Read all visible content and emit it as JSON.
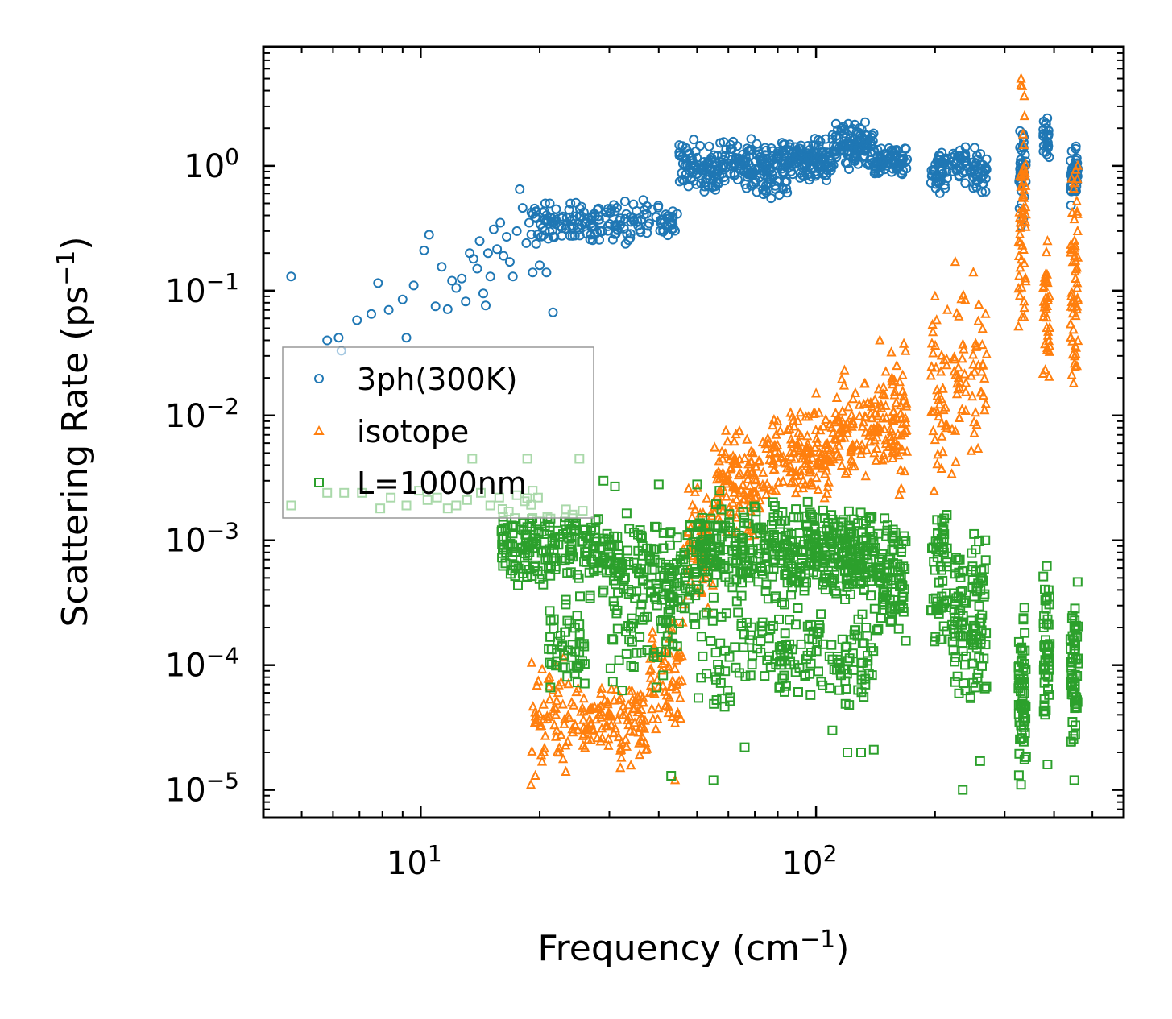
{
  "chart_data": {
    "type": "scatter",
    "xscale": "log",
    "yscale": "log",
    "xlim": [
      4.0,
      600
    ],
    "ylim": [
      6e-06,
      9.0
    ],
    "xlabel": {
      "base": "Frequency (cm",
      "sup": "−1",
      "tail": ")"
    },
    "ylabel": {
      "base": "Scattering Rate (ps",
      "sup": "−1",
      "tail": ")"
    },
    "x_ticks": [
      {
        "value": 10,
        "base": "10",
        "exp": "1"
      },
      {
        "value": 100,
        "base": "10",
        "exp": "2"
      }
    ],
    "y_ticks": [
      {
        "value": 1,
        "base": "10",
        "exp": "0"
      },
      {
        "value": 0.1,
        "base": "10",
        "exp": "−1"
      },
      {
        "value": 0.01,
        "base": "10",
        "exp": "−2"
      },
      {
        "value": 0.001,
        "base": "10",
        "exp": "−3"
      },
      {
        "value": 0.0001,
        "base": "10",
        "exp": "−4"
      },
      {
        "value": 1e-05,
        "base": "10",
        "exp": "−5"
      }
    ],
    "legend": {
      "position": "center-left",
      "alpha": 0.6
    },
    "series": [
      {
        "name": "3ph(300K)",
        "marker": "circle",
        "color": "#1f77b4",
        "points": [
          [
            4.7,
            0.13
          ],
          [
            5.8,
            0.04
          ],
          [
            6.2,
            0.042
          ],
          [
            6.3,
            0.033
          ],
          [
            6.9,
            0.058
          ],
          [
            7.5,
            0.065
          ],
          [
            7.8,
            0.115
          ],
          [
            8.3,
            0.07
          ],
          [
            9.0,
            0.085
          ],
          [
            9.2,
            0.042
          ],
          [
            9.6,
            0.11
          ],
          [
            10.2,
            0.21
          ],
          [
            10.5,
            0.28
          ],
          [
            10.9,
            0.075
          ],
          [
            11.3,
            0.155
          ],
          [
            11.7,
            0.071
          ],
          [
            12.0,
            0.12
          ],
          [
            12.3,
            0.105
          ],
          [
            12.7,
            0.125
          ],
          [
            13.0,
            0.082
          ],
          [
            13.3,
            0.2
          ],
          [
            13.6,
            0.18
          ],
          [
            13.9,
            0.15
          ],
          [
            14.1,
            0.25
          ],
          [
            14.4,
            0.095
          ],
          [
            14.6,
            0.076
          ],
          [
            14.8,
            0.2
          ],
          [
            15.0,
            0.13
          ],
          [
            15.3,
            0.31
          ],
          [
            15.6,
            0.215
          ],
          [
            15.9,
            0.35
          ],
          [
            16.2,
            0.19
          ],
          [
            16.5,
            0.27
          ],
          [
            16.8,
            0.17
          ],
          [
            17.1,
            0.13
          ],
          [
            17.5,
            0.3
          ],
          [
            17.8,
            0.65
          ],
          [
            18.1,
            0.46
          ],
          [
            18.5,
            0.24
          ],
          [
            18.8,
            0.35
          ],
          [
            19.2,
            0.14
          ],
          [
            19.6,
            0.38
          ],
          [
            20.0,
            0.16
          ],
          [
            20.4,
            0.42
          ],
          [
            20.8,
            0.14
          ],
          [
            21.2,
            0.5
          ],
          [
            21.6,
            0.067
          ],
          [
            22.0,
            0.45
          ]
        ],
        "bands": [
          [
            19,
            45,
            0.23,
            0.55,
            170
          ],
          [
            45,
            70,
            0.55,
            1.8,
            160
          ],
          [
            70,
            85,
            0.5,
            1.6,
            90
          ],
          [
            85,
            110,
            0.75,
            1.7,
            110
          ],
          [
            110,
            140,
            0.9,
            2.3,
            110
          ],
          [
            140,
            170,
            0.8,
            1.5,
            70
          ],
          [
            195,
            215,
            0.55,
            1.5,
            40
          ],
          [
            220,
            240,
            0.7,
            1.6,
            30
          ],
          [
            245,
            270,
            0.55,
            1.5,
            40
          ],
          [
            325,
            340,
            0.3,
            2.8,
            40
          ],
          [
            375,
            390,
            1.0,
            2.8,
            25
          ],
          [
            440,
            460,
            0.4,
            1.7,
            40
          ]
        ]
      },
      {
        "name": "isotope",
        "marker": "triangle",
        "color": "#ff7f0e",
        "points": [
          [
            19.0,
            1.1e-05
          ],
          [
            19.5,
            1.3e-05
          ],
          [
            20.5,
            2e-05
          ],
          [
            23.0,
            0.000115
          ],
          [
            25.0,
            6.5e-05
          ],
          [
            27.0,
            2.5e-05
          ],
          [
            32.0,
            1.5e-05
          ],
          [
            33.0,
            4e-05
          ],
          [
            38.0,
            9e-05
          ],
          [
            41.0,
            0.00013
          ],
          [
            44.0,
            1.2e-05
          ],
          [
            46.0,
            0.00022
          ],
          [
            50.0,
            0.0007
          ],
          [
            55.0,
            0.002
          ],
          [
            58.0,
            0.0045
          ],
          [
            60.0,
            0.003
          ],
          [
            64.0,
            0.0075
          ],
          [
            90.0,
            0.009
          ],
          [
            100.0,
            0.015
          ],
          [
            118.0,
            0.023
          ],
          [
            133.0,
            0.018
          ],
          [
            145.0,
            0.04
          ],
          [
            155.0,
            0.032
          ],
          [
            160.0,
            0.025
          ],
          [
            200.0,
            0.09
          ],
          [
            215.0,
            0.07
          ],
          [
            225.0,
            0.17
          ],
          [
            250.0,
            0.14
          ],
          [
            330.0,
            5.0
          ],
          [
            385.0,
            0.25
          ],
          [
            450.0,
            0.22
          ]
        ],
        "bands": [
          [
            19,
            24,
            1.2e-05,
            0.00012,
            55
          ],
          [
            24,
            30,
            1.8e-05,
            7e-05,
            55
          ],
          [
            30,
            38,
            1.5e-05,
            8e-05,
            60
          ],
          [
            38,
            46,
            2.5e-05,
            0.00025,
            60
          ],
          [
            46,
            55,
            0.00025,
            0.003,
            60
          ],
          [
            55,
            75,
            0.001,
            0.008,
            120
          ],
          [
            75,
            110,
            0.002,
            0.012,
            140
          ],
          [
            110,
            150,
            0.003,
            0.02,
            110
          ],
          [
            150,
            170,
            0.002,
            0.04,
            60
          ],
          [
            195,
            215,
            0.002,
            0.09,
            40
          ],
          [
            220,
            240,
            0.003,
            0.17,
            30
          ],
          [
            245,
            270,
            0.004,
            0.14,
            30
          ],
          [
            325,
            340,
            0.03,
            5.0,
            55
          ],
          [
            375,
            390,
            0.015,
            0.3,
            35
          ],
          [
            440,
            460,
            0.01,
            1.3,
            55
          ]
        ]
      },
      {
        "name": "L=1000nm",
        "marker": "square",
        "color": "#2ca02c",
        "points": [
          [
            4.7,
            0.0019
          ],
          [
            5.8,
            0.0024
          ],
          [
            6.4,
            0.0024
          ],
          [
            7.1,
            0.0024
          ],
          [
            7.9,
            0.0018
          ],
          [
            8.4,
            0.0022
          ],
          [
            9.2,
            0.0019
          ],
          [
            9.9,
            0.0025
          ],
          [
            10.4,
            0.0021
          ],
          [
            11.0,
            0.0022
          ],
          [
            11.7,
            0.0018
          ],
          [
            12.3,
            0.0019
          ],
          [
            13.1,
            0.0021
          ],
          [
            13.5,
            0.0045
          ],
          [
            14.2,
            0.0024
          ],
          [
            15.0,
            0.0019
          ],
          [
            15.8,
            0.0022
          ],
          [
            16.7,
            0.0017
          ],
          [
            17.5,
            0.0023
          ],
          [
            18.6,
            0.0045
          ],
          [
            19.2,
            0.0025
          ],
          [
            19.8,
            0.0022
          ],
          [
            25.2,
            0.0045
          ],
          [
            29.0,
            0.003
          ],
          [
            31.0,
            0.0027
          ],
          [
            40.0,
            0.0028
          ],
          [
            43.0,
            1.3e-05
          ],
          [
            50.0,
            0.0028
          ],
          [
            55.0,
            1.2e-05
          ],
          [
            57.0,
            0.0025
          ],
          [
            66.0,
            2.2e-05
          ],
          [
            110.0,
            3e-05
          ],
          [
            120.0,
            2e-05
          ],
          [
            130.0,
            2e-05
          ],
          [
            140.0,
            2.1e-05
          ],
          [
            235.0,
            1e-05
          ],
          [
            260.0,
            1.7e-05
          ],
          [
            330.0,
            1.1e-05
          ],
          [
            385.0,
            1.6e-05
          ],
          [
            450.0,
            1.2e-05
          ]
        ],
        "bands": [
          [
            16,
            25,
            0.0004,
            0.0022,
            150
          ],
          [
            21,
            26,
            5e-05,
            0.0004,
            50
          ],
          [
            25,
            40,
            0.0003,
            0.0018,
            130
          ],
          [
            30,
            45,
            6e-05,
            0.0006,
            60
          ],
          [
            40,
            50,
            0.0002,
            0.0016,
            70
          ],
          [
            50,
            80,
            0.0003,
            0.0022,
            170
          ],
          [
            50,
            80,
            4e-05,
            0.0003,
            60
          ],
          [
            80,
            110,
            0.0003,
            0.0022,
            150
          ],
          [
            80,
            110,
            5e-05,
            0.0003,
            60
          ],
          [
            110,
            140,
            0.0003,
            0.002,
            130
          ],
          [
            110,
            140,
            4e-05,
            0.0003,
            50
          ],
          [
            140,
            170,
            0.00015,
            0.0017,
            90
          ],
          [
            195,
            215,
            0.0001,
            0.002,
            60
          ],
          [
            220,
            240,
            5e-05,
            0.0012,
            50
          ],
          [
            245,
            270,
            4e-05,
            0.0013,
            60
          ],
          [
            325,
            340,
            1.2e-05,
            0.00035,
            60
          ],
          [
            375,
            390,
            2e-05,
            0.0008,
            50
          ],
          [
            440,
            460,
            1.5e-05,
            0.0005,
            60
          ]
        ]
      }
    ]
  }
}
